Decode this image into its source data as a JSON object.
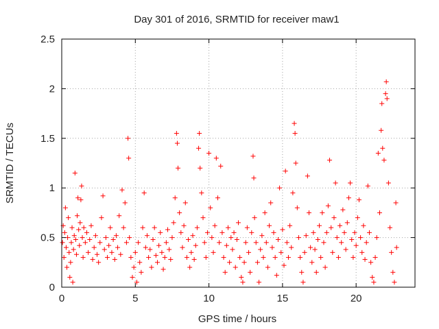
{
  "chart_data": {
    "type": "scatter",
    "title": "Day 301 of 2016, SRMTID for receiver maw1",
    "xlabel": "GPS time / hours",
    "ylabel": "SRMTID / TECUs",
    "xlim": [
      0,
      24
    ],
    "ylim": [
      0,
      2.5
    ],
    "xticks": [
      0,
      5,
      10,
      15,
      20
    ],
    "xtick_labels": [
      "0",
      "5",
      "10",
      "15",
      "20"
    ],
    "yticks": [
      0,
      0.5,
      1,
      1.5,
      2,
      2.5
    ],
    "ytick_labels": [
      "0",
      "0.5",
      "1",
      "1.5",
      "2",
      "2.5"
    ],
    "grid": true,
    "marker": "+",
    "color": "#ff0000",
    "series": [
      {
        "name": "SRMTID",
        "points": [
          [
            0.05,
            0.45
          ],
          [
            0.1,
            0.62
          ],
          [
            0.15,
            0.3
          ],
          [
            0.2,
            0.55
          ],
          [
            0.25,
            0.8
          ],
          [
            0.3,
            0.4
          ],
          [
            0.35,
            0.2
          ],
          [
            0.4,
            0.5
          ],
          [
            0.45,
            0.7
          ],
          [
            0.5,
            0.35
          ],
          [
            0.55,
            0.1
          ],
          [
            0.6,
            0.25
          ],
          [
            0.65,
            0.45
          ],
          [
            0.7,
            0.6
          ],
          [
            0.75,
            0.05
          ],
          [
            0.8,
            0.38
          ],
          [
            0.85,
            0.52
          ],
          [
            0.9,
            1.15
          ],
          [
            0.95,
            0.48
          ],
          [
            1.0,
            0.33
          ],
          [
            1.05,
            0.72
          ],
          [
            1.1,
            0.9
          ],
          [
            1.15,
            0.58
          ],
          [
            1.2,
            0.42
          ],
          [
            1.25,
            0.65
          ],
          [
            1.3,
            0.88
          ],
          [
            1.35,
            1.02
          ],
          [
            1.4,
            0.5
          ],
          [
            1.45,
            0.3
          ],
          [
            1.5,
            0.6
          ],
          [
            1.6,
            0.45
          ],
          [
            1.7,
            0.55
          ],
          [
            1.8,
            0.35
          ],
          [
            1.9,
            0.48
          ],
          [
            2.0,
            0.62
          ],
          [
            2.1,
            0.28
          ],
          [
            2.2,
            0.4
          ],
          [
            2.3,
            0.52
          ],
          [
            2.4,
            0.33
          ],
          [
            2.5,
            0.25
          ],
          [
            2.6,
            0.45
          ],
          [
            2.7,
            0.7
          ],
          [
            2.8,
            0.92
          ],
          [
            2.9,
            0.38
          ],
          [
            3.0,
            0.5
          ],
          [
            3.1,
            0.3
          ],
          [
            3.2,
            0.42
          ],
          [
            3.3,
            0.6
          ],
          [
            3.4,
            0.35
          ],
          [
            3.5,
            0.48
          ],
          [
            3.6,
            0.28
          ],
          [
            3.7,
            0.52
          ],
          [
            3.8,
            0.4
          ],
          [
            3.9,
            0.72
          ],
          [
            4.0,
            0.33
          ],
          [
            4.1,
            0.98
          ],
          [
            4.2,
            0.6
          ],
          [
            4.3,
            0.85
          ],
          [
            4.4,
            0.45
          ],
          [
            4.5,
            1.5
          ],
          [
            4.55,
            1.3
          ],
          [
            4.6,
            0.5
          ],
          [
            4.7,
            0.3
          ],
          [
            4.8,
            0.1
          ],
          [
            4.9,
            0.2
          ],
          [
            5.0,
            0.35
          ],
          [
            5.1,
            0.05
          ],
          [
            5.2,
            0.45
          ],
          [
            5.3,
            0.25
          ],
          [
            5.4,
            0.15
          ],
          [
            5.5,
            0.6
          ],
          [
            5.6,
            0.95
          ],
          [
            5.7,
            0.4
          ],
          [
            5.8,
            0.52
          ],
          [
            5.9,
            0.3
          ],
          [
            6.0,
            0.38
          ],
          [
            6.1,
            0.2
          ],
          [
            6.2,
            0.48
          ],
          [
            6.3,
            0.6
          ],
          [
            6.4,
            0.32
          ],
          [
            6.5,
            0.25
          ],
          [
            6.6,
            0.42
          ],
          [
            6.7,
            0.55
          ],
          [
            6.8,
            0.35
          ],
          [
            6.9,
            0.18
          ],
          [
            7.0,
            0.3
          ],
          [
            7.1,
            0.45
          ],
          [
            7.2,
            0.58
          ],
          [
            7.3,
            0.38
          ],
          [
            7.4,
            0.28
          ],
          [
            7.5,
            0.5
          ],
          [
            7.6,
            0.65
          ],
          [
            7.7,
            0.9
          ],
          [
            7.8,
            1.55
          ],
          [
            7.85,
            1.45
          ],
          [
            7.9,
            1.2
          ],
          [
            8.0,
            0.75
          ],
          [
            8.1,
            0.55
          ],
          [
            8.2,
            0.4
          ],
          [
            8.3,
            0.62
          ],
          [
            8.4,
            0.85
          ],
          [
            8.5,
            0.3
          ],
          [
            8.6,
            0.48
          ],
          [
            8.7,
            0.2
          ],
          [
            8.8,
            0.35
          ],
          [
            8.9,
            0.52
          ],
          [
            9.0,
            0.28
          ],
          [
            9.1,
            0.42
          ],
          [
            9.2,
            0.6
          ],
          [
            9.3,
            1.4
          ],
          [
            9.35,
            1.55
          ],
          [
            9.4,
            1.2
          ],
          [
            9.5,
            0.95
          ],
          [
            9.6,
            0.7
          ],
          [
            9.7,
            0.45
          ],
          [
            9.8,
            0.3
          ],
          [
            9.9,
            0.55
          ],
          [
            10.0,
            1.35
          ],
          [
            10.1,
            0.8
          ],
          [
            10.2,
            0.5
          ],
          [
            10.3,
            0.35
          ],
          [
            10.4,
            0.62
          ],
          [
            10.5,
            1.3
          ],
          [
            10.6,
            0.9
          ],
          [
            10.7,
            0.45
          ],
          [
            10.8,
            1.22
          ],
          [
            10.9,
            0.55
          ],
          [
            11.0,
            0.3
          ],
          [
            11.1,
            0.15
          ],
          [
            11.2,
            0.42
          ],
          [
            11.3,
            0.6
          ],
          [
            11.4,
            0.25
          ],
          [
            11.5,
            0.5
          ],
          [
            11.6,
            0.38
          ],
          [
            11.7,
            0.55
          ],
          [
            11.8,
            0.2
          ],
          [
            11.9,
            0.48
          ],
          [
            12.0,
            0.65
          ],
          [
            12.1,
            0.3
          ],
          [
            12.2,
            0.1
          ],
          [
            12.3,
            0.05
          ],
          [
            12.4,
            0.25
          ],
          [
            12.5,
            0.45
          ],
          [
            12.6,
            0.6
          ],
          [
            12.7,
            0.35
          ],
          [
            12.8,
            0.15
          ],
          [
            12.9,
            0.55
          ],
          [
            13.0,
            1.32
          ],
          [
            13.05,
            1.1
          ],
          [
            13.1,
            0.7
          ],
          [
            13.2,
            0.45
          ],
          [
            13.3,
            0.25
          ],
          [
            13.4,
            0.05
          ],
          [
            13.5,
            0.38
          ],
          [
            13.6,
            0.52
          ],
          [
            13.7,
            0.3
          ],
          [
            13.8,
            0.75
          ],
          [
            13.9,
            0.45
          ],
          [
            14.0,
            0.2
          ],
          [
            14.1,
            0.62
          ],
          [
            14.2,
            0.85
          ],
          [
            14.3,
            0.4
          ],
          [
            14.4,
            0.55
          ],
          [
            14.5,
            0.3
          ],
          [
            14.6,
            0.12
          ],
          [
            14.7,
            0.48
          ],
          [
            14.8,
            1.0
          ],
          [
            14.9,
            0.35
          ],
          [
            15.0,
            0.58
          ],
          [
            15.1,
            0.22
          ],
          [
            15.2,
            1.17
          ],
          [
            15.3,
            0.45
          ],
          [
            15.4,
            0.3
          ],
          [
            15.5,
            0.62
          ],
          [
            15.6,
            0.4
          ],
          [
            15.7,
            0.95
          ],
          [
            15.8,
            1.65
          ],
          [
            15.85,
            1.55
          ],
          [
            15.9,
            1.25
          ],
          [
            16.0,
            0.8
          ],
          [
            16.1,
            0.5
          ],
          [
            16.2,
            0.3
          ],
          [
            16.3,
            0.15
          ],
          [
            16.4,
            0.05
          ],
          [
            16.5,
            0.35
          ],
          [
            16.6,
            0.52
          ],
          [
            16.7,
            1.12
          ],
          [
            16.8,
            0.75
          ],
          [
            16.9,
            0.4
          ],
          [
            17.0,
            0.25
          ],
          [
            17.1,
            0.55
          ],
          [
            17.2,
            0.38
          ],
          [
            17.3,
            0.15
          ],
          [
            17.4,
            0.48
          ],
          [
            17.5,
            0.62
          ],
          [
            17.6,
            0.3
          ],
          [
            17.7,
            0.75
          ],
          [
            17.8,
            0.45
          ],
          [
            17.9,
            0.2
          ],
          [
            18.0,
            0.55
          ],
          [
            18.1,
            0.82
          ],
          [
            18.2,
            1.28
          ],
          [
            18.3,
            0.6
          ],
          [
            18.4,
            0.35
          ],
          [
            18.5,
            0.7
          ],
          [
            18.6,
            1.05
          ],
          [
            18.7,
            0.5
          ],
          [
            18.8,
            0.3
          ],
          [
            18.9,
            0.62
          ],
          [
            19.0,
            0.45
          ],
          [
            19.1,
            0.78
          ],
          [
            19.2,
            0.55
          ],
          [
            19.3,
            0.38
          ],
          [
            19.4,
            0.65
          ],
          [
            19.5,
            0.9
          ],
          [
            19.6,
            1.05
          ],
          [
            19.7,
            0.48
          ],
          [
            19.8,
            0.3
          ],
          [
            19.9,
            0.55
          ],
          [
            20.0,
            0.42
          ],
          [
            20.1,
            0.7
          ],
          [
            20.2,
            0.88
          ],
          [
            20.3,
            0.5
          ],
          [
            20.4,
            0.35
          ],
          [
            20.5,
            0.62
          ],
          [
            20.6,
            0.28
          ],
          [
            20.7,
            0.45
          ],
          [
            20.8,
            1.02
          ],
          [
            20.9,
            0.55
          ],
          [
            21.0,
            0.25
          ],
          [
            21.1,
            0.1
          ],
          [
            21.2,
            0.05
          ],
          [
            21.3,
            0.3
          ],
          [
            21.4,
            0.5
          ],
          [
            21.5,
            1.35
          ],
          [
            21.6,
            0.75
          ],
          [
            21.7,
            1.58
          ],
          [
            21.75,
            1.85
          ],
          [
            21.8,
            1.4
          ],
          [
            21.9,
            1.28
          ],
          [
            22.0,
            1.95
          ],
          [
            22.05,
            2.07
          ],
          [
            22.1,
            1.9
          ],
          [
            22.2,
            1.05
          ],
          [
            22.3,
            0.6
          ],
          [
            22.4,
            0.35
          ],
          [
            22.5,
            0.15
          ],
          [
            22.6,
            0.05
          ],
          [
            22.7,
            0.85
          ],
          [
            22.75,
            0.4
          ]
        ]
      }
    ]
  }
}
